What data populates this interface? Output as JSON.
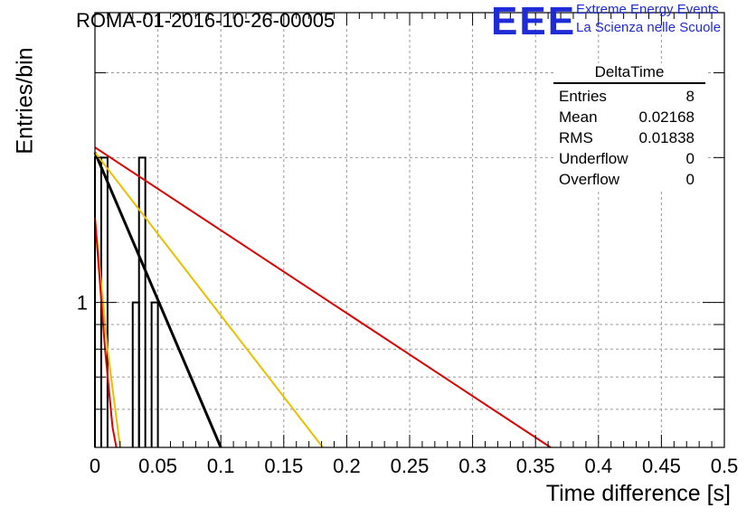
{
  "header": {
    "run_title": "ROMA-01-2016-10-26-00005",
    "logo_text": "EEE",
    "logo_line1": "Extreme Energy Events",
    "logo_line2": "La Scienza nelle Scuole"
  },
  "stats_box": {
    "title": "DeltaTime",
    "rows": [
      {
        "label": "Entries",
        "value": "8"
      },
      {
        "label": "Mean",
        "value": "0.02168"
      },
      {
        "label": "RMS",
        "value": "0.01838"
      },
      {
        "label": "Underflow",
        "value": "0"
      },
      {
        "label": "Overflow",
        "value": "0"
      }
    ]
  },
  "chart_data": {
    "type": "histogram",
    "xlabel": "Time difference [s]",
    "ylabel": "Entries/bin",
    "xlim": [
      0,
      0.5
    ],
    "ylim": [
      0.5,
      4
    ],
    "yscale": "log",
    "grid": true,
    "x_ticks": [
      0,
      0.05,
      0.1,
      0.15,
      0.2,
      0.25,
      0.3,
      0.35,
      0.4,
      0.45,
      0.5
    ],
    "x_tick_labels": [
      "0",
      "0.05",
      "0.1",
      "0.15",
      "0.2",
      "0.25",
      "0.3",
      "0.35",
      "0.4",
      "0.45",
      "0.5"
    ],
    "y_labeled_ticks": [
      1
    ],
    "y_tick_labels": [
      "1"
    ],
    "histogram": {
      "bin_width": 0.005,
      "bins": [
        {
          "x0": 0.0,
          "x1": 0.005,
          "count": 2
        },
        {
          "x0": 0.005,
          "x1": 0.01,
          "count": 2
        },
        {
          "x0": 0.03,
          "x1": 0.035,
          "count": 1
        },
        {
          "x0": 0.035,
          "x1": 0.04,
          "count": 2
        },
        {
          "x0": 0.045,
          "x1": 0.05,
          "count": 1
        }
      ],
      "color": "#000000"
    },
    "fit_lines": [
      {
        "color": "#000000",
        "width": 3,
        "points": [
          [
            0.0,
            2.05
          ],
          [
            0.1,
            0.5
          ]
        ]
      },
      {
        "color": "#e8c000",
        "width": 2,
        "points": [
          [
            0.0,
            2.05
          ],
          [
            0.181,
            0.5
          ]
        ]
      },
      {
        "color": "#dd0000",
        "width": 2,
        "points": [
          [
            0.0,
            2.1
          ],
          [
            0.362,
            0.5
          ]
        ]
      },
      {
        "color": "#e8c000",
        "width": 2,
        "points": [
          [
            0.0,
            1.5
          ],
          [
            0.01,
            0.8
          ],
          [
            0.02,
            0.5
          ]
        ]
      },
      {
        "color": "#dd0000",
        "width": 2,
        "points": [
          [
            0.0,
            1.5
          ],
          [
            0.008,
            0.8
          ],
          [
            0.014,
            0.55
          ],
          [
            0.017,
            0.5
          ]
        ]
      }
    ]
  }
}
